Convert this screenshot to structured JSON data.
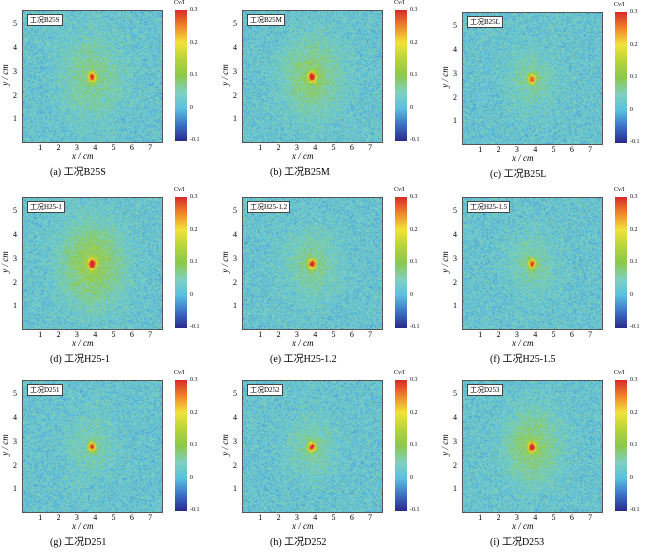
{
  "chart_data": {
    "type": "heatmap",
    "xlabel": "x / cm",
    "ylabel": "y / cm",
    "xticks": [
      "1",
      "2",
      "3",
      "4",
      "5",
      "6",
      "7"
    ],
    "yticks": [
      "1",
      "2",
      "3",
      "4",
      "5"
    ],
    "xlim": [
      0,
      7.7
    ],
    "ylim": [
      0,
      5.6
    ],
    "colorbar": {
      "label": "Cv/I",
      "ticks": [
        "0.3",
        "0.2",
        "0.1",
        "0",
        "-0.1"
      ],
      "range": [
        -0.1,
        0.3
      ]
    },
    "source_center_cm": [
      3.8,
      2.8
    ],
    "panels": [
      {
        "tag": "工况B25S",
        "caption": "(a) 工况B25S",
        "peak": 0.28,
        "halo": 0.05,
        "spread": 1.6
      },
      {
        "tag": "工况B25M",
        "caption": "(b) 工况B25M",
        "peak": 0.3,
        "halo": 0.07,
        "spread": 1.5
      },
      {
        "tag": "工况B25L",
        "caption": "(c) 工况B25L",
        "peak": 0.25,
        "halo": 0.04,
        "spread": 1.2
      },
      {
        "tag": "工况H25-1",
        "caption": "(d) 工况H25-1",
        "peak": 0.3,
        "halo": 0.09,
        "spread": 1.6
      },
      {
        "tag": "工况H25-1.2",
        "caption": "(e) 工况H25-1.2",
        "peak": 0.3,
        "halo": 0.05,
        "spread": 1.3
      },
      {
        "tag": "工况H25-1.5",
        "caption": "(f) 工况H25-1.5",
        "peak": 0.26,
        "halo": 0.04,
        "spread": 1.2
      },
      {
        "tag": "工况D251",
        "caption": "(g) 工况D251",
        "peak": 0.27,
        "halo": 0.03,
        "spread": 1.3
      },
      {
        "tag": "工况D252",
        "caption": "(h) 工况D252",
        "peak": 0.28,
        "halo": 0.04,
        "spread": 1.2
      },
      {
        "tag": "工况D253",
        "caption": "(i) 工况D253",
        "peak": 0.3,
        "halo": 0.07,
        "spread": 1.4
      }
    ]
  }
}
